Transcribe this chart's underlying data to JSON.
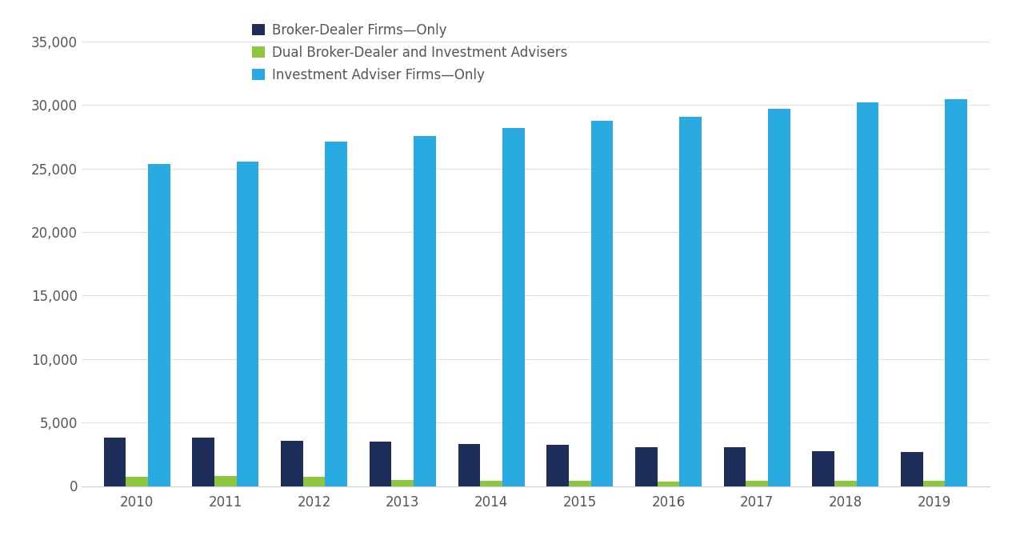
{
  "years": [
    2010,
    2011,
    2012,
    2013,
    2014,
    2015,
    2016,
    2017,
    2018,
    2019
  ],
  "broker_dealer_only": [
    3795,
    3835,
    3545,
    3490,
    3300,
    3275,
    3050,
    3025,
    2755,
    2700
  ],
  "dual_broker_dealer": [
    700,
    780,
    710,
    480,
    420,
    390,
    370,
    420,
    430,
    440
  ],
  "investment_adviser_only": [
    25350,
    25550,
    27150,
    27550,
    28200,
    28750,
    29050,
    29700,
    30200,
    30450
  ],
  "colors": {
    "broker_dealer_only": "#1e2d5a",
    "dual_broker_dealer": "#8dc63f",
    "investment_adviser_only": "#29abe2"
  },
  "legend_labels": [
    "Broker-Dealer Firms—Only",
    "Dual Broker-Dealer and Investment Advisers",
    "Investment Adviser Firms—Only"
  ],
  "ylim": [
    0,
    37000
  ],
  "yticks": [
    0,
    5000,
    10000,
    15000,
    20000,
    25000,
    30000,
    35000
  ],
  "background_color": "#ffffff",
  "bar_width": 0.25,
  "figsize": [
    12.75,
    6.75
  ],
  "dpi": 100
}
